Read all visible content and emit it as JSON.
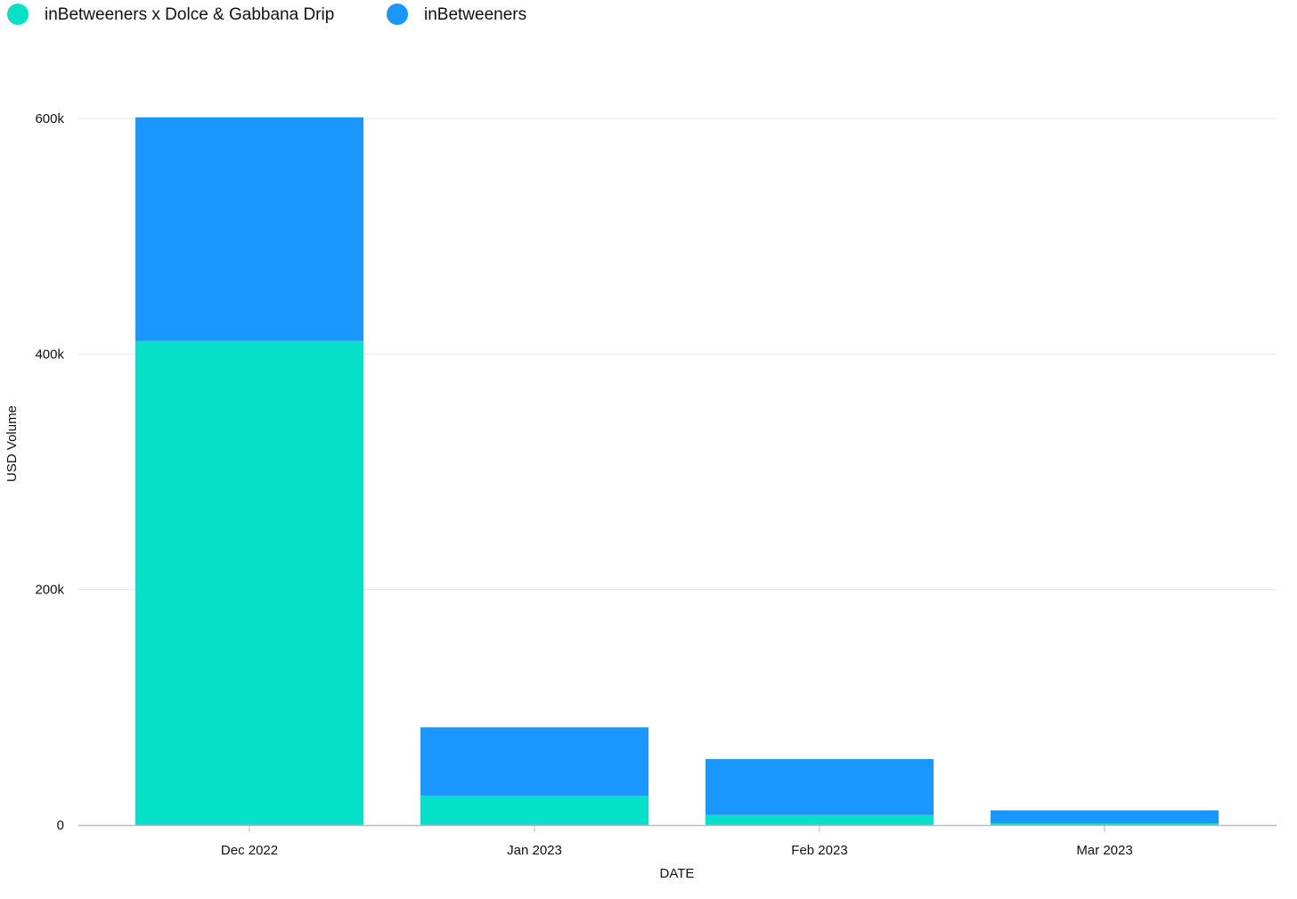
{
  "chart_data": {
    "type": "bar",
    "stacked": true,
    "categories": [
      "Dec 2022",
      "Jan 2023",
      "Feb 2023",
      "Mar 2023"
    ],
    "series": [
      {
        "name": "inBetweeners x Dolce & Gabbana Drip",
        "color": "#05e1c8",
        "values": [
          411000,
          25000,
          8500,
          1500
        ]
      },
      {
        "name": "inBetweeners",
        "color": "#1a96ff",
        "values": [
          190000,
          58000,
          47500,
          11000
        ]
      }
    ],
    "xlabel": "DATE",
    "ylabel": "USD Volume",
    "ylim": [
      0,
      600000
    ],
    "yticks": [
      0,
      200000,
      400000,
      600000
    ],
    "ytick_labels": [
      "0",
      "200k",
      "400k",
      "600k"
    ],
    "grid": true,
    "legend_position": "top-left"
  }
}
